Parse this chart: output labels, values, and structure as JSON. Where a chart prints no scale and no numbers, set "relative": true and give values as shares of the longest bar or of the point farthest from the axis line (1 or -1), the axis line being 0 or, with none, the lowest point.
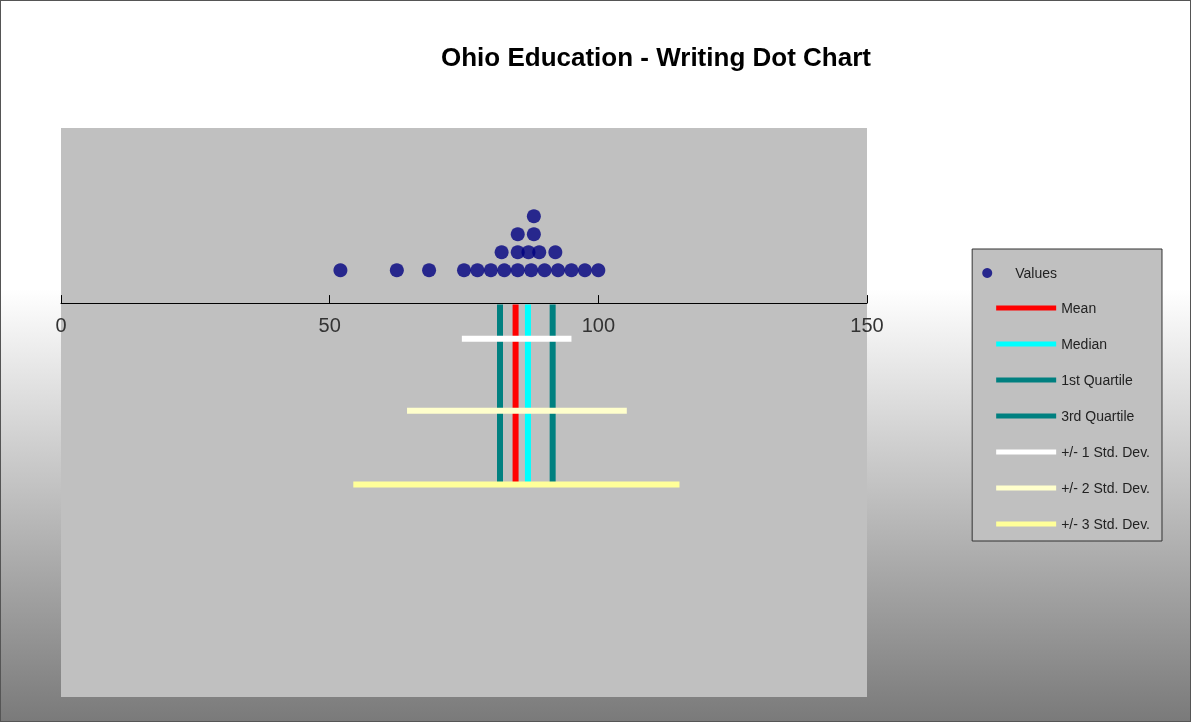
{
  "chart_data": {
    "type": "scatter",
    "title": "Ohio Education - Writing Dot Chart",
    "relative": true,
    "xlim": [
      0,
      150
    ],
    "xticks": [
      0,
      50,
      100,
      150
    ],
    "legend": "right",
    "series": [
      {
        "name": "Values",
        "marker": "circle",
        "color": "#000080",
        "x": [
          52,
          62.5,
          68.5,
          75,
          77.5,
          80,
          82.5,
          85,
          87.5,
          90,
          92.5,
          95,
          97.5,
          100,
          82,
          85,
          87,
          89,
          92,
          85,
          88,
          88
        ],
        "values": [
          0.19,
          0.19,
          0.19,
          0.19,
          0.19,
          0.19,
          0.19,
          0.19,
          0.19,
          0.19,
          0.19,
          0.19,
          0.19,
          0.19,
          0.29,
          0.29,
          0.29,
          0.29,
          0.29,
          0.39,
          0.39,
          0.49
        ]
      },
      {
        "name": "Mean",
        "type": "line",
        "marker": "none",
        "color": "#ff0000",
        "x": [
          84.6,
          84.6
        ],
        "values": [
          0,
          -1
        ]
      },
      {
        "name": "Median",
        "type": "line",
        "marker": "none",
        "color": "#00ffff",
        "x": [
          86.9,
          86.9
        ],
        "values": [
          0,
          -1
        ]
      },
      {
        "name": "1st Quartile",
        "type": "line",
        "marker": "none",
        "color": "#008080",
        "x": [
          81.7,
          81.7
        ],
        "values": [
          0,
          -1
        ]
      },
      {
        "name": "3rd Quartile",
        "type": "line",
        "marker": "none",
        "color": "#008080",
        "x": [
          91.5,
          91.5
        ],
        "values": [
          0,
          -1
        ]
      },
      {
        "name": "+/- 1 Std. Dev.",
        "type": "line",
        "marker": "none",
        "color": "#ffffff",
        "x": [
          74.6,
          95
        ],
        "values": [
          -0.19,
          -0.19
        ]
      },
      {
        "name": "+/- 2 Std. Dev.",
        "type": "line",
        "marker": "none",
        "color": "#ffffcc",
        "x": [
          64.4,
          105.3
        ],
        "values": [
          -0.59,
          -0.59
        ]
      },
      {
        "name": "+/- 3 Std. Dev.",
        "type": "line",
        "marker": "none",
        "color": "#ffff99",
        "x": [
          54.4,
          115.1
        ],
        "values": [
          -1,
          -1
        ]
      }
    ]
  }
}
